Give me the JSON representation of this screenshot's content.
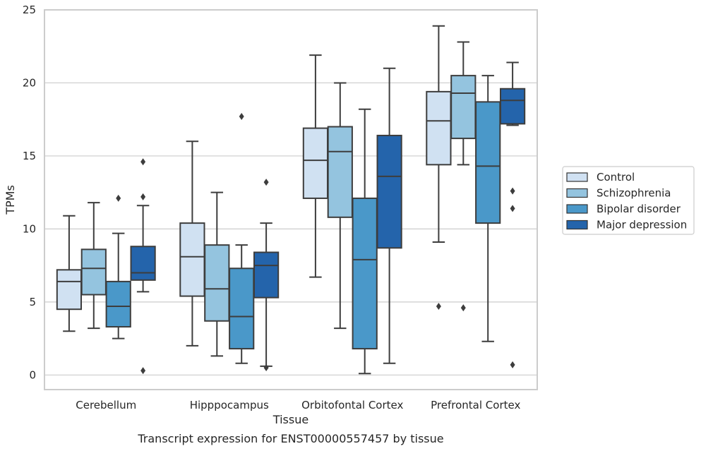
{
  "chart_data": {
    "type": "box",
    "xlabel": "Tissue",
    "ylabel": "TPMs",
    "caption": "Transcript expression for ENST00000557457 by tissue",
    "ylim": [
      -1,
      25
    ],
    "yticks": [
      0,
      5,
      10,
      15,
      20,
      25
    ],
    "grid": "horizontal",
    "legend_position": "right",
    "categories": [
      "Cerebellum",
      "Hipppocampus",
      "Orbitofontal Cortex",
      "Prefrontal Cortex"
    ],
    "series": [
      {
        "name": "Control",
        "color": "#d0e1f2",
        "boxes": [
          {
            "whislo": 3.0,
            "q1": 4.5,
            "med": 6.4,
            "q3": 7.2,
            "whishi": 10.9,
            "fliers": []
          },
          {
            "whislo": 2.0,
            "q1": 5.4,
            "med": 8.1,
            "q3": 10.4,
            "whishi": 16.0,
            "fliers": []
          },
          {
            "whislo": 6.7,
            "q1": 12.1,
            "med": 14.7,
            "q3": 16.9,
            "whishi": 21.9,
            "fliers": []
          },
          {
            "whislo": 9.1,
            "q1": 14.4,
            "med": 17.4,
            "q3": 19.4,
            "whishi": 23.9,
            "fliers": [
              4.7
            ]
          }
        ]
      },
      {
        "name": "Schizophrenia",
        "color": "#94c4df",
        "boxes": [
          {
            "whislo": 3.2,
            "q1": 5.5,
            "med": 7.3,
            "q3": 8.6,
            "whishi": 11.8,
            "fliers": []
          },
          {
            "whislo": 1.3,
            "q1": 3.7,
            "med": 5.9,
            "q3": 8.9,
            "whishi": 12.5,
            "fliers": []
          },
          {
            "whislo": 3.2,
            "q1": 10.8,
            "med": 15.3,
            "q3": 17.0,
            "whishi": 20.0,
            "fliers": []
          },
          {
            "whislo": 14.4,
            "q1": 16.2,
            "med": 19.3,
            "q3": 20.5,
            "whishi": 22.8,
            "fliers": [
              4.6
            ]
          }
        ]
      },
      {
        "name": "Bipolar disorder",
        "color": "#4a98c9",
        "boxes": [
          {
            "whislo": 2.5,
            "q1": 3.3,
            "med": 4.7,
            "q3": 6.4,
            "whishi": 9.7,
            "fliers": [
              12.1
            ]
          },
          {
            "whislo": 0.8,
            "q1": 1.8,
            "med": 4.0,
            "q3": 7.3,
            "whishi": 8.9,
            "fliers": [
              17.7
            ]
          },
          {
            "whislo": 0.1,
            "q1": 1.8,
            "med": 7.9,
            "q3": 12.1,
            "whishi": 18.2,
            "fliers": []
          },
          {
            "whislo": 2.3,
            "q1": 10.4,
            "med": 14.3,
            "q3": 18.7,
            "whishi": 20.5,
            "fliers": []
          }
        ]
      },
      {
        "name": "Major depression",
        "color": "#2464ab",
        "boxes": [
          {
            "whislo": 5.7,
            "q1": 6.5,
            "med": 7.0,
            "q3": 8.8,
            "whishi": 11.6,
            "fliers": [
              14.6,
              12.2,
              0.3
            ]
          },
          {
            "whislo": 0.6,
            "q1": 5.3,
            "med": 7.5,
            "q3": 8.4,
            "whishi": 10.4,
            "fliers": [
              13.2,
              0.5
            ]
          },
          {
            "whislo": 0.8,
            "q1": 8.7,
            "med": 13.6,
            "q3": 16.4,
            "whishi": 21.0,
            "fliers": []
          },
          {
            "whislo": 17.1,
            "q1": 17.2,
            "med": 18.8,
            "q3": 19.6,
            "whishi": 21.4,
            "fliers": [
              12.6,
              11.4,
              0.7
            ]
          }
        ]
      }
    ]
  }
}
